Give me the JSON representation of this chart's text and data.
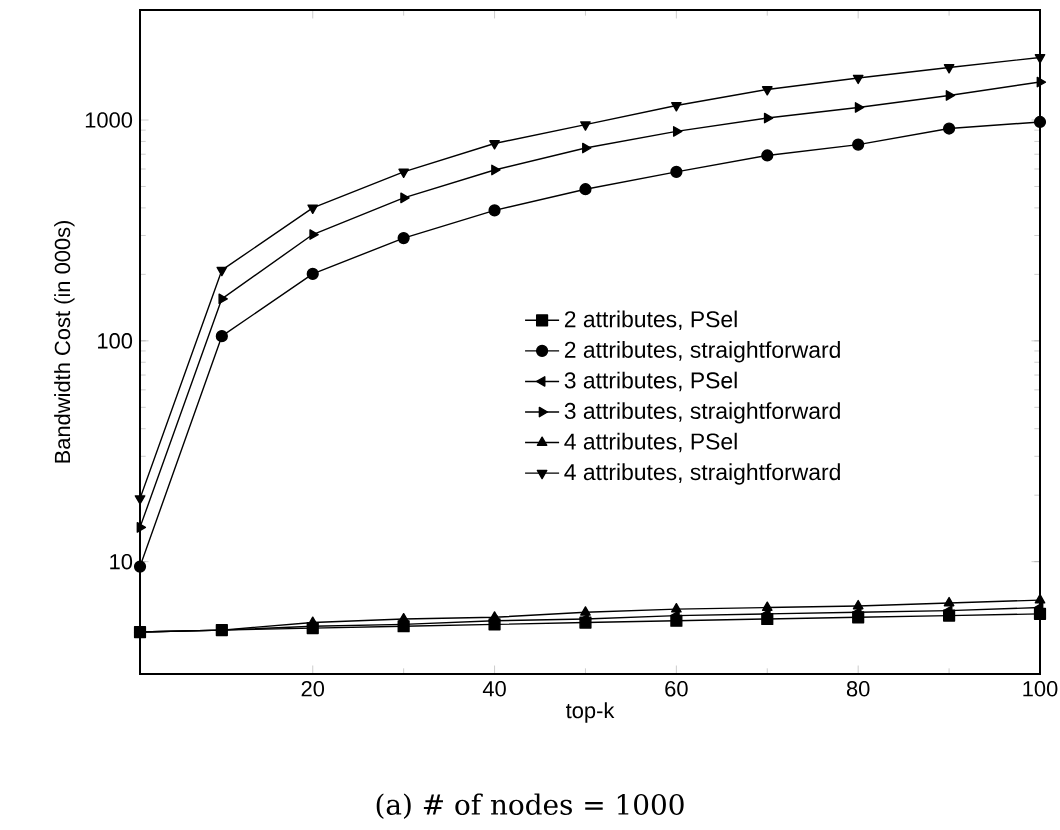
{
  "chart_data": {
    "type": "line",
    "xlabel": "top-k",
    "ylabel": "Bandwidth Cost (in 000s)",
    "annotations": [
      "(a) # of nodes = 1000"
    ],
    "x": [
      1,
      10,
      20,
      30,
      40,
      50,
      60,
      70,
      80,
      90,
      100
    ],
    "series": [
      {
        "name": "2 attributes, PSel",
        "color": "#000000",
        "marker": "square",
        "values": [
          4.8,
          4.9,
          5.0,
          5.1,
          5.2,
          5.3,
          5.4,
          5.5,
          5.6,
          5.7,
          5.8
        ]
      },
      {
        "name": "2 attributes, straightforward",
        "color": "#000000",
        "marker": "circle",
        "values": [
          9.5,
          105,
          201,
          292,
          390,
          486,
          582,
          691,
          774,
          915,
          980
        ]
      },
      {
        "name": "3 attributes, PSel",
        "color": "#000000",
        "marker": "triangle-left",
        "values": [
          4.8,
          4.9,
          5.1,
          5.2,
          5.4,
          5.5,
          5.7,
          5.8,
          5.9,
          6.0,
          6.2
        ]
      },
      {
        "name": "3 attributes, straightforward",
        "color": "#000000",
        "marker": "triangle-right",
        "values": [
          14.3,
          155,
          303,
          444,
          594,
          747,
          888,
          1021,
          1140,
          1292,
          1486
        ]
      },
      {
        "name": "4 attributes, PSel",
        "color": "#000000",
        "marker": "triangle",
        "values": [
          4.8,
          4.9,
          5.3,
          5.5,
          5.6,
          5.9,
          6.1,
          6.2,
          6.3,
          6.5,
          6.7
        ]
      },
      {
        "name": "4 attributes, straightforward",
        "color": "#000000",
        "marker": "triangle-down",
        "values": [
          19.3,
          209,
          400,
          582,
          783,
          953,
          1164,
          1375,
          1549,
          1730,
          1920
        ]
      }
    ],
    "xlim": [
      1,
      100
    ],
    "xticks": [
      20,
      40,
      60,
      80,
      100
    ],
    "ylim": [
      3.1,
      3150
    ],
    "yticks": [
      10,
      100,
      1000
    ],
    "log": "y",
    "grid": false,
    "legend": "right",
    "line_style": "solid"
  }
}
